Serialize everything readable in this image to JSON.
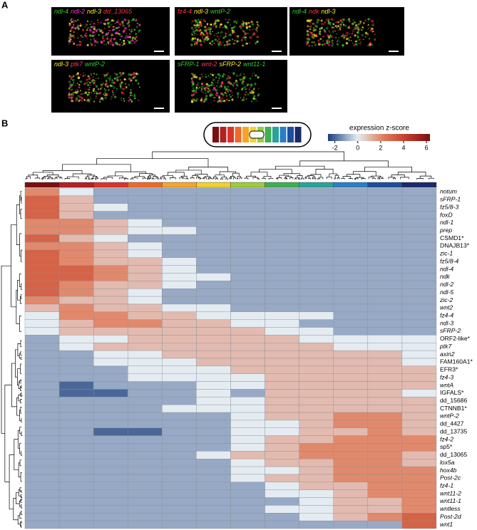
{
  "panel_a": {
    "label": "A",
    "images": [
      {
        "captions": [
          {
            "text": "ndl-4",
            "color": "#33cc33"
          },
          {
            "text": "ndl-2",
            "color": "#ff33cc"
          },
          {
            "text": "ndl-3",
            "color": "#ffee33"
          },
          {
            "text": "dd_13065",
            "color": "#ff3333"
          }
        ]
      },
      {
        "captions": [
          {
            "text": "fz4-4",
            "color": "#ff3333"
          },
          {
            "text": "ndl-3",
            "color": "#ffee33"
          },
          {
            "text": "wntP-2",
            "color": "#33cc33"
          }
        ]
      },
      {
        "captions": [
          {
            "text": "ndl-4",
            "color": "#33cc33"
          },
          {
            "text": "ndk",
            "color": "#ff3333"
          },
          {
            "text": "ndl-3",
            "color": "#ffee33"
          }
        ]
      },
      {
        "captions": [
          {
            "text": "ndl-3",
            "color": "#ffee33"
          },
          {
            "text": "ptk7",
            "color": "#ff3366"
          },
          {
            "text": "wntP-2",
            "color": "#33cc33"
          }
        ]
      },
      {
        "captions": [
          {
            "text": "sFRP-1",
            "color": "#33cc33"
          },
          {
            "text": "wnt-2",
            "color": "#ff3366"
          },
          {
            "text": "sFRP-2",
            "color": "#ffee33"
          },
          {
            "text": "wnt11-1",
            "color": "#33cc33"
          }
        ]
      }
    ]
  },
  "panel_b": {
    "label": "B",
    "colorbar": {
      "title": "expression z-score",
      "lim": [
        -2.6,
        6.3
      ],
      "ticks": [
        -2,
        0,
        2,
        4,
        6
      ]
    },
    "heatmap": {
      "rows": [
        "notum",
        "sFRP-1",
        "fz5/8-3",
        "foxD",
        "ndl-1",
        "prep",
        "CSMD1*",
        "DNAJB13*",
        "zic-1",
        "fz5/8-4",
        "ndl-4",
        "ndk",
        "ndl-2",
        "ndl-5",
        "zic-2",
        "wnt2",
        "fz4-4",
        "ndl-3",
        "sFRP-2",
        "ORF2-like*",
        "ptk7",
        "axin2",
        "FAM160A1*",
        "EFR3*",
        "fz4-3",
        "wntA",
        "IGFALS*",
        "dd_15686",
        "CTNNB1*",
        "wntP-2",
        "dd_4427",
        "dd_13735",
        "fz4-2",
        "sp5*",
        "dd_13065",
        "lox5a",
        "hox4b",
        "Post-2c",
        "fz4-1",
        "wnt11-2",
        "wnt11-1",
        "wntless",
        "Post-2d",
        "wnt1"
      ],
      "values": [
        [
          2,
          0,
          -1,
          -1,
          -1,
          -1,
          -1,
          -1,
          -1,
          -1,
          -1,
          -1
        ],
        [
          3,
          1,
          -1,
          -1,
          -1,
          -1,
          -1,
          -1,
          -1,
          -1,
          -1,
          -1
        ],
        [
          3,
          1,
          0,
          -1,
          -1,
          -1,
          -1,
          -1,
          -1,
          -1,
          -1,
          -1
        ],
        [
          3,
          1,
          -1,
          -1,
          -1,
          -1,
          -1,
          -1,
          -1,
          -1,
          -1,
          -1
        ],
        [
          2,
          2,
          1,
          0,
          -1,
          -1,
          -1,
          -1,
          -1,
          -1,
          -1,
          -1
        ],
        [
          2,
          2,
          1,
          0,
          0,
          -1,
          -1,
          -1,
          -1,
          -1,
          -1,
          -1
        ],
        [
          3,
          1,
          0,
          -1,
          -1,
          -1,
          -1,
          -1,
          -1,
          -1,
          -1,
          -1
        ],
        [
          2,
          2,
          1,
          0,
          -1,
          -1,
          -1,
          -1,
          -1,
          -1,
          -1,
          -1
        ],
        [
          3,
          2,
          1,
          0,
          -1,
          -1,
          -1,
          -1,
          -1,
          -1,
          -1,
          -1
        ],
        [
          3,
          2,
          1,
          1,
          0,
          -1,
          -1,
          -1,
          -1,
          -1,
          -1,
          -1
        ],
        [
          3,
          3,
          2,
          1,
          0,
          -1,
          -1,
          -1,
          -1,
          -1,
          -1,
          -1
        ],
        [
          3,
          3,
          2,
          1,
          0,
          0,
          -1,
          -1,
          -1,
          -1,
          -1,
          -1
        ],
        [
          3,
          2,
          1,
          1,
          0,
          -1,
          -1,
          -1,
          -1,
          -1,
          -1,
          -1
        ],
        [
          3,
          2,
          1,
          0,
          -1,
          -1,
          -1,
          -1,
          -1,
          -1,
          -1,
          -1
        ],
        [
          2,
          1,
          1,
          0,
          -1,
          -1,
          -1,
          -1,
          -1,
          -1,
          -1,
          -1
        ],
        [
          1,
          2,
          1,
          1,
          0,
          0,
          -1,
          -1,
          -1,
          -1,
          -1,
          -1
        ],
        [
          0,
          2,
          2,
          1,
          1,
          0,
          0,
          0,
          0,
          -1,
          -1,
          -1
        ],
        [
          0,
          1,
          2,
          2,
          1,
          1,
          0,
          0,
          -1,
          -1,
          -1,
          -1
        ],
        [
          0,
          1,
          1,
          1,
          1,
          1,
          1,
          0,
          0,
          -1,
          -1,
          -1
        ],
        [
          -1,
          0,
          0,
          1,
          1,
          1,
          1,
          1,
          0,
          0,
          0,
          0
        ],
        [
          -1,
          0,
          1,
          1,
          1,
          1,
          1,
          1,
          1,
          0,
          0,
          0
        ],
        [
          -1,
          -1,
          0,
          0,
          1,
          1,
          1,
          1,
          1,
          1,
          1,
          0
        ],
        [
          -1,
          -1,
          0,
          0,
          0,
          1,
          1,
          1,
          1,
          1,
          1,
          0
        ],
        [
          -1,
          -1,
          -1,
          0,
          0,
          0,
          1,
          1,
          1,
          1,
          1,
          1
        ],
        [
          -1,
          -1,
          -1,
          0,
          0,
          0,
          0,
          1,
          1,
          1,
          1,
          1
        ],
        [
          -1,
          -2,
          -1,
          -1,
          -1,
          0,
          0,
          1,
          1,
          1,
          1,
          1
        ],
        [
          -1,
          -2,
          -2,
          -1,
          -1,
          0,
          -1,
          1,
          1,
          1,
          1,
          0
        ],
        [
          -1,
          -1,
          -1,
          -1,
          -1,
          0,
          0,
          1,
          1,
          1,
          1,
          1
        ],
        [
          -1,
          -1,
          -1,
          -1,
          0,
          0,
          0,
          1,
          1,
          1,
          1,
          1
        ],
        [
          -1,
          -1,
          -1,
          -1,
          -1,
          -1,
          0,
          1,
          1,
          2,
          2,
          1
        ],
        [
          -1,
          -1,
          -1,
          -1,
          -1,
          -1,
          0,
          0,
          1,
          2,
          2,
          1
        ],
        [
          -1,
          -1,
          -2,
          -2,
          -1,
          -1,
          0,
          0,
          1,
          1,
          2,
          1
        ],
        [
          -1,
          -1,
          -1,
          -1,
          -1,
          -1,
          0,
          1,
          1,
          2,
          2,
          2
        ],
        [
          -1,
          -1,
          -1,
          -1,
          -1,
          -1,
          0,
          1,
          2,
          2,
          2,
          2
        ],
        [
          -1,
          -1,
          -1,
          -1,
          -1,
          0,
          1,
          1,
          2,
          2,
          2,
          1
        ],
        [
          -1,
          -1,
          -1,
          -1,
          -1,
          -1,
          0,
          1,
          1,
          2,
          2,
          1
        ],
        [
          -1,
          -1,
          -1,
          -1,
          -1,
          -1,
          0,
          0,
          1,
          2,
          2,
          2
        ],
        [
          -1,
          -1,
          -1,
          -1,
          -1,
          -1,
          0,
          1,
          1,
          2,
          2,
          2
        ],
        [
          -1,
          -1,
          -1,
          -1,
          -1,
          -1,
          -1,
          0,
          1,
          1,
          2,
          2
        ],
        [
          -1,
          -1,
          -1,
          -1,
          -1,
          -1,
          -1,
          0,
          0,
          1,
          2,
          2
        ],
        [
          -1,
          -1,
          -1,
          -1,
          -1,
          -1,
          -1,
          -1,
          0,
          1,
          1,
          2
        ],
        [
          -1,
          -1,
          -1,
          -1,
          -1,
          -1,
          -1,
          0,
          0,
          1,
          1,
          2
        ],
        [
          -1,
          -1,
          -1,
          -1,
          -1,
          -1,
          -1,
          -1,
          0,
          1,
          2,
          3
        ],
        [
          -1,
          -1,
          -1,
          -1,
          -1,
          -1,
          -1,
          -1,
          -1,
          -1,
          -1,
          3
        ]
      ]
    }
  }
}
